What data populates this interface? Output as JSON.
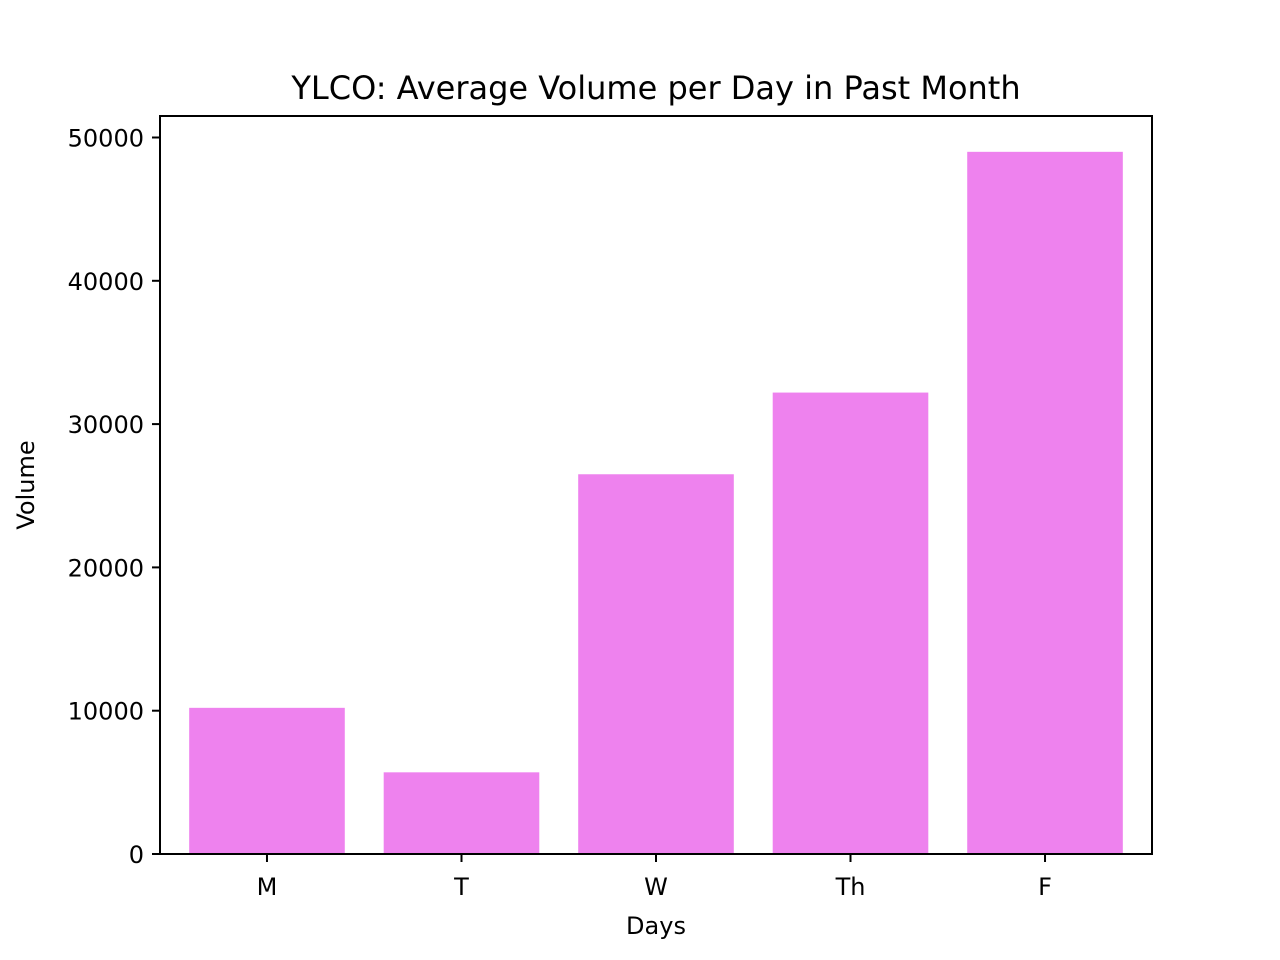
{
  "chart_data": {
    "type": "bar",
    "title": "YLCO: Average Volume per Day in Past Month",
    "xlabel": "Days",
    "ylabel": "Volume",
    "categories": [
      "M",
      "T",
      "W",
      "Th",
      "F"
    ],
    "values": [
      10200,
      5700,
      26500,
      32200,
      49000
    ],
    "ylim": [
      0,
      51500
    ],
    "yticks": [
      0,
      10000,
      20000,
      30000,
      40000,
      50000
    ],
    "ytick_labels": [
      "0",
      "10000",
      "20000",
      "30000",
      "40000",
      "50000"
    ],
    "bar_color": "#ee82ee",
    "grid": false,
    "legend": null
  }
}
